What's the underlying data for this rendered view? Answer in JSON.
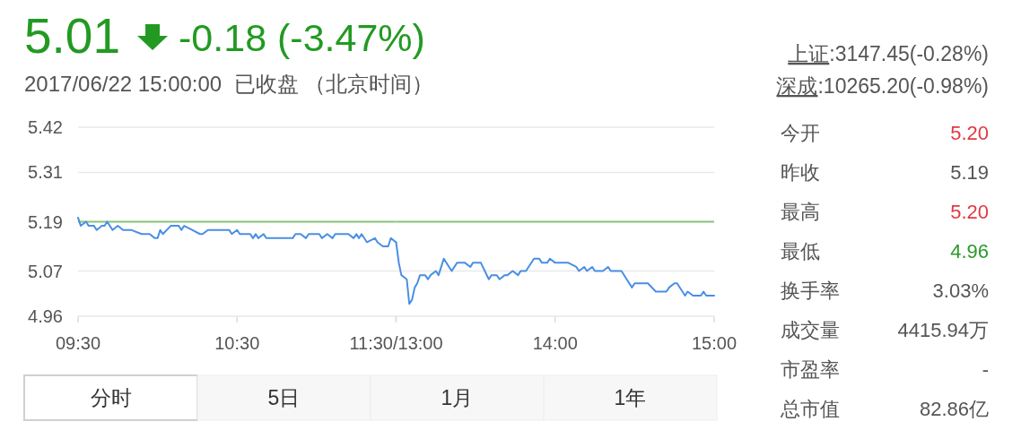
{
  "chart_data": [
    {
      "type": "line",
      "title": "5.01",
      "subtitle": "-0.18 (-3.47%)",
      "annotations": [
        "2017/06/22 15:00:00  已收盘 （北京时间）",
        "分时",
        "5日",
        "1月",
        "1年"
      ],
      "x": [
        9.5,
        9.517,
        9.55,
        9.567,
        9.6,
        9.617,
        9.65,
        9.667,
        9.683,
        9.717,
        9.75,
        9.783,
        9.833,
        9.9,
        9.95,
        9.983,
        10,
        10.017,
        10.033,
        10.083,
        10.133,
        10.15,
        10.167,
        10.217,
        10.267,
        10.283,
        10.317,
        10.45,
        10.467,
        10.5,
        10.517,
        10.583,
        10.6,
        10.617,
        10.633,
        10.667,
        10.683,
        10.85,
        10.867,
        10.9,
        10.933,
        10.95,
        11.017,
        11.033,
        11.067,
        11.1,
        11.117,
        11.2,
        11.233,
        11.25,
        11.267,
        11.283,
        11.317,
        11.367,
        11.383,
        11.417,
        11.45,
        11.467,
        11.5
      ],
      "series": [
        {
          "color": "#4a8fe2",
          "values": [
            5.2,
            5.18,
            5.19,
            5.18,
            5.18,
            5.17,
            5.18,
            5.18,
            5.19,
            5.17,
            5.18,
            5.17,
            5.17,
            5.16,
            5.16,
            5.15,
            5.15,
            5.17,
            5.16,
            5.18,
            5.18,
            5.17,
            5.18,
            5.17,
            5.16,
            5.16,
            5.17,
            5.17,
            5.16,
            5.17,
            5.16,
            5.16,
            5.15,
            5.16,
            5.15,
            5.16,
            5.15,
            5.15,
            5.16,
            5.16,
            5.15,
            5.16,
            5.16,
            5.15,
            5.16,
            5.15,
            5.16,
            5.16,
            5.15,
            5.16,
            5.15,
            5.16,
            5.14,
            5.15,
            5.14,
            5.13,
            5.13,
            5.15,
            5.14
          ]
        }
      ],
      "xlim": [
        9.5,
        11.5
      ],
      "xticks": [
        {
          "value": 9.5,
          "label": "09:30"
        },
        {
          "value": 10.5,
          "label": "10:30"
        },
        {
          "value": 11.5,
          "label": "11:30/13:00"
        }
      ],
      "ylim": [
        4.96,
        5.42
      ],
      "yticks": [
        4.96,
        5.07,
        5.19,
        5.31,
        5.42
      ],
      "grid": "y",
      "ref_lines": [
        {
          "axis": "y",
          "value": 5.19,
          "color": "#86c67c"
        }
      ]
    },
    {
      "type": "line",
      "x": [
        13,
        13.017,
        13.033,
        13.067,
        13.083,
        13.1,
        13.117,
        13.133,
        13.15,
        13.183,
        13.2,
        13.217,
        13.25,
        13.267,
        13.3,
        13.333,
        13.35,
        13.383,
        13.433,
        13.467,
        13.483,
        13.533,
        13.583,
        13.6,
        13.633,
        13.65,
        13.683,
        13.7,
        13.733,
        13.767,
        13.783,
        13.817,
        13.833,
        13.867,
        13.9,
        13.917,
        13.95,
        13.967,
        14,
        14.083,
        14.133,
        14.15,
        14.183,
        14.2,
        14.233,
        14.25,
        14.3,
        14.333,
        14.35,
        14.417,
        14.45,
        14.483,
        14.5,
        14.583,
        14.633,
        14.7,
        14.717,
        14.75,
        14.767,
        14.817,
        14.833,
        14.867,
        14.917,
        14.933,
        14.95,
        15
      ],
      "series": [
        {
          "color": "#4a8fe2",
          "values": [
            5.14,
            5.09,
            5.06,
            5.05,
            4.99,
            5.0,
            5.03,
            5.04,
            5.06,
            5.06,
            5.05,
            5.06,
            5.07,
            5.06,
            5.1,
            5.08,
            5.07,
            5.09,
            5.09,
            5.08,
            5.09,
            5.09,
            5.05,
            5.06,
            5.06,
            5.05,
            5.06,
            5.06,
            5.07,
            5.06,
            5.07,
            5.07,
            5.08,
            5.1,
            5.1,
            5.09,
            5.09,
            5.1,
            5.09,
            5.09,
            5.08,
            5.07,
            5.08,
            5.07,
            5.08,
            5.07,
            5.07,
            5.08,
            5.07,
            5.07,
            5.05,
            5.03,
            5.04,
            5.04,
            5.02,
            5.02,
            5.03,
            5.04,
            5.04,
            5.01,
            5.02,
            5.01,
            5.01,
            5.02,
            5.01,
            5.01
          ]
        }
      ],
      "xlim": [
        13,
        15
      ],
      "xticks": [
        {
          "value": 13,
          "label": null
        },
        {
          "value": 14,
          "label": "14:00"
        },
        {
          "value": 15,
          "label": "15:00"
        }
      ],
      "ylim": [
        4.96,
        5.42
      ],
      "yticks": [
        4.96,
        5.07,
        5.19,
        5.31,
        5.42
      ],
      "tick_labels": "x",
      "grid": "y",
      "ref_lines": [
        {
          "axis": "y",
          "value": 5.19,
          "color": "#86c67c"
        }
      ]
    },
    {
      "type": "other",
      "annotations": [
        "上证:3147.45(-0.28%)",
        "深成:10265.20(-0.98%)"
      ],
      "categories": [
        "今开",
        "昨收",
        "最高",
        "最低",
        "换手率",
        "成交量",
        "市盈率",
        "总市值"
      ],
      "value_labels": [
        "5.20",
        "5.19",
        "5.20",
        "4.96",
        "3.03%",
        "4415.94万",
        "-",
        "82.86亿"
      ],
      "colors": [
        "#e2393f",
        "#555555",
        "#e2393f",
        "#2a9a2a",
        "#555555",
        "#555555",
        "#555555",
        "#555555"
      ]
    }
  ]
}
